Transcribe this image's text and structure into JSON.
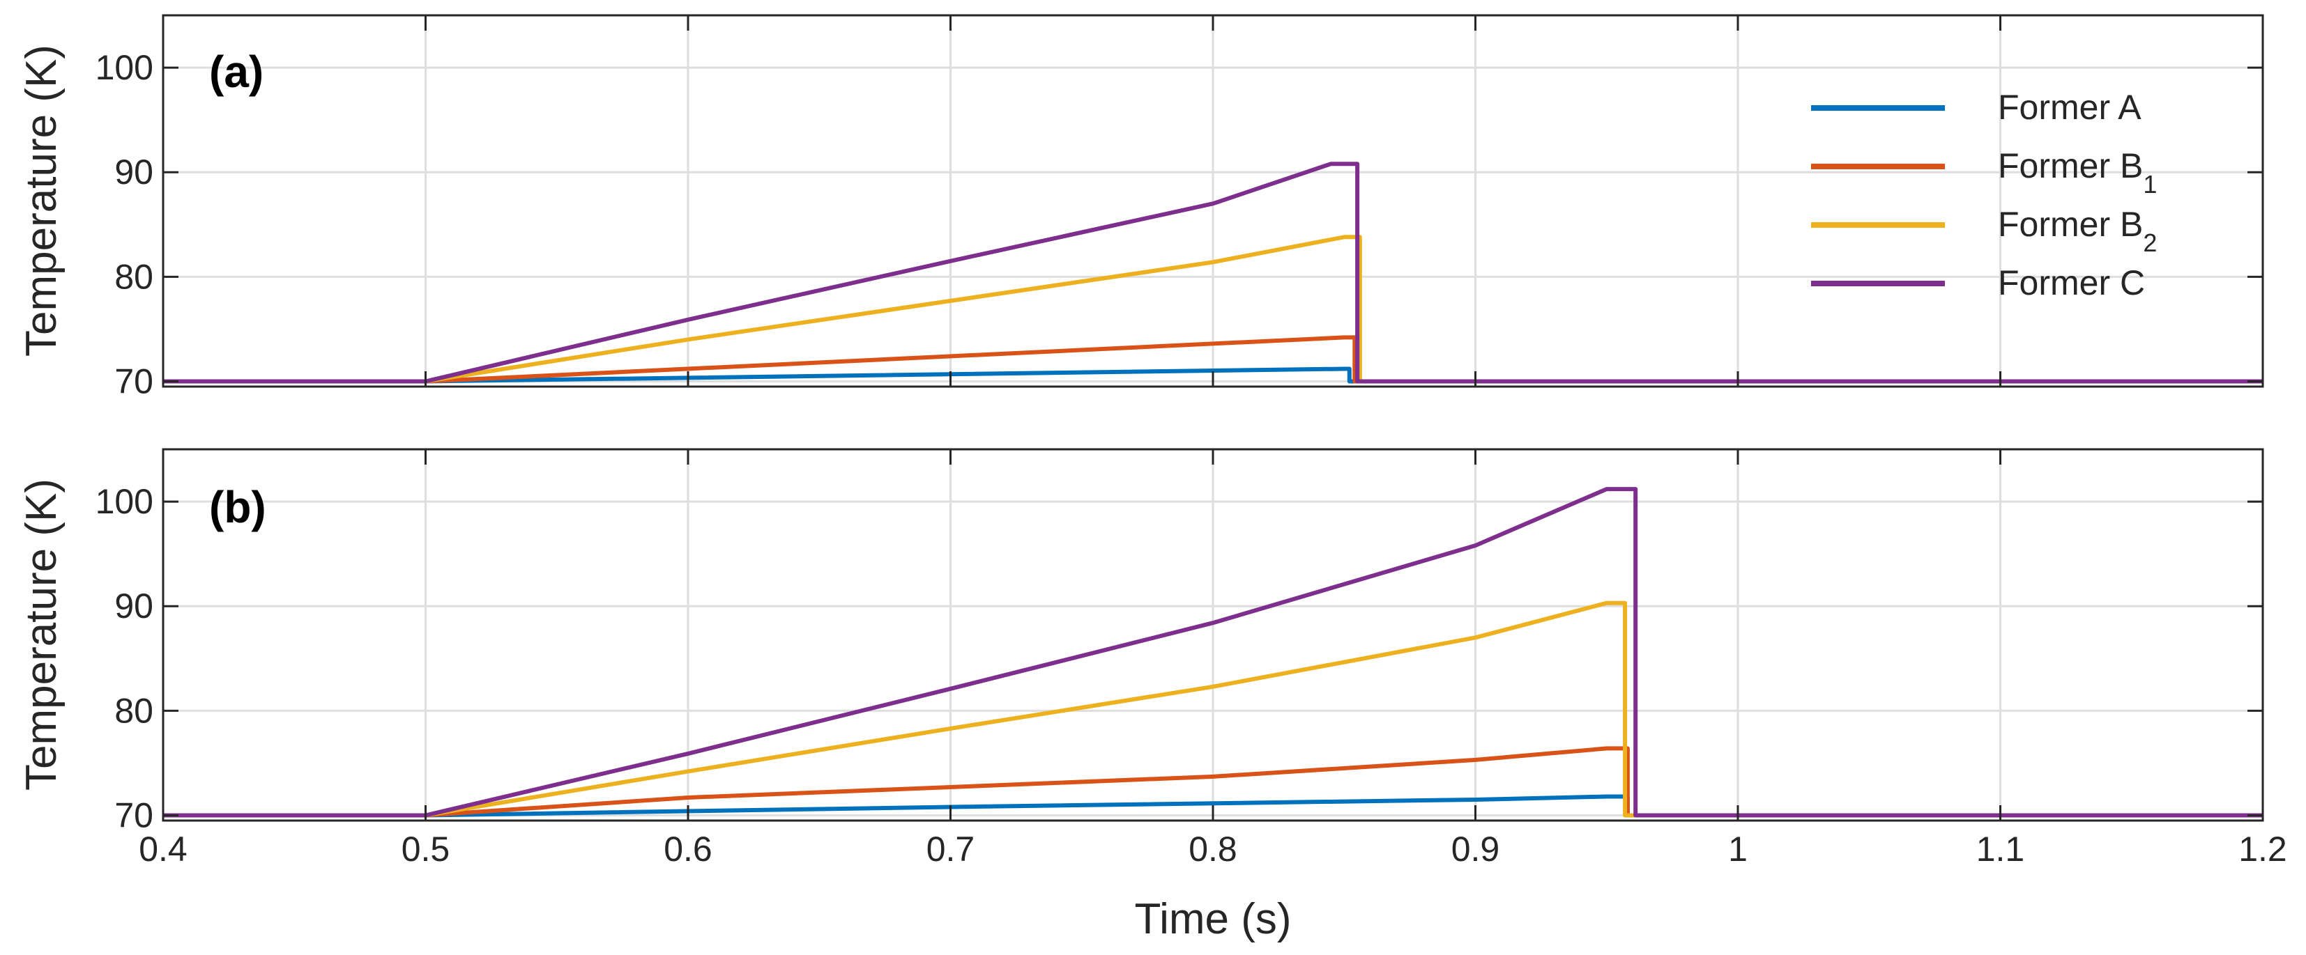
{
  "chart_data": [
    {
      "type": "line",
      "panel_label": "(a)",
      "xlabel": "",
      "ylabel": "Temperature (K)",
      "xlim": [
        0.4,
        1.2
      ],
      "ylim": [
        69.5,
        105
      ],
      "x_ticks": [
        0.4,
        0.5,
        0.6,
        0.7,
        0.8,
        0.9,
        1.0,
        1.1,
        1.2
      ],
      "x_tick_labels": [
        "",
        "",
        "",
        "",
        "",
        "",
        "",
        "",
        ""
      ],
      "y_ticks": [
        70,
        80,
        90,
        100
      ],
      "y_tick_labels": [
        "70",
        "80",
        "90",
        "100"
      ],
      "grid": true,
      "legend": {
        "position": "top-right",
        "entries": [
          {
            "text": "Former A",
            "sub": ""
          },
          {
            "text": "Former B",
            "sub": "1"
          },
          {
            "text": "Former B",
            "sub": "2"
          },
          {
            "text": "Former C",
            "sub": ""
          }
        ]
      },
      "series": [
        {
          "name": "Former A",
          "color": "#0072bd",
          "x": [
            0.4,
            0.5,
            0.85,
            0.85,
            0.852,
            0.852,
            1.2
          ],
          "y": [
            70,
            70,
            71.2,
            71.2,
            71.2,
            70,
            70
          ]
        },
        {
          "name": "Former B1",
          "color": "#d95319",
          "x": [
            0.4,
            0.5,
            0.85,
            0.854,
            0.854,
            1.2
          ],
          "y": [
            70,
            70,
            74.2,
            74.2,
            70,
            70
          ]
        },
        {
          "name": "Former B2",
          "color": "#edb120",
          "x": [
            0.4,
            0.5,
            0.6,
            0.7,
            0.8,
            0.85,
            0.856,
            0.856,
            1.2
          ],
          "y": [
            70,
            70,
            74.0,
            77.7,
            81.4,
            83.8,
            83.8,
            70,
            70
          ]
        },
        {
          "name": "Former C",
          "color": "#7e2f8e",
          "x": [
            0.4,
            0.5,
            0.6,
            0.7,
            0.8,
            0.845,
            0.855,
            0.855,
            1.2
          ],
          "y": [
            70,
            70,
            75.9,
            81.5,
            87.0,
            90.8,
            90.8,
            70,
            70
          ]
        }
      ]
    },
    {
      "type": "line",
      "panel_label": "(b)",
      "xlabel": "Time (s)",
      "ylabel": "Temperature (K)",
      "xlim": [
        0.4,
        1.2
      ],
      "ylim": [
        69.5,
        105
      ],
      "x_ticks": [
        0.4,
        0.5,
        0.6,
        0.7,
        0.8,
        0.9,
        1.0,
        1.1,
        1.2
      ],
      "x_tick_labels": [
        "0.4",
        "0.5",
        "0.6",
        "0.7",
        "0.8",
        "0.9",
        "1",
        "1.1",
        "1.2"
      ],
      "y_ticks": [
        70,
        80,
        90,
        100
      ],
      "y_tick_labels": [
        "70",
        "80",
        "90",
        "100"
      ],
      "grid": true,
      "series": [
        {
          "name": "Former A",
          "color": "#0072bd",
          "x": [
            0.4,
            0.5,
            0.7,
            0.9,
            0.95,
            0.958,
            0.958,
            1.2
          ],
          "y": [
            70,
            70,
            70.8,
            71.5,
            71.8,
            71.8,
            70,
            70
          ]
        },
        {
          "name": "Former B1",
          "color": "#d95319",
          "x": [
            0.4,
            0.5,
            0.6,
            0.7,
            0.8,
            0.9,
            0.95,
            0.958,
            0.958,
            1.2
          ],
          "y": [
            70,
            70,
            71.7,
            72.7,
            73.7,
            75.3,
            76.4,
            76.4,
            70,
            70
          ]
        },
        {
          "name": "Former B2",
          "color": "#edb120",
          "x": [
            0.4,
            0.5,
            0.6,
            0.7,
            0.8,
            0.9,
            0.95,
            0.957,
            0.957,
            1.2
          ],
          "y": [
            70,
            70,
            74.2,
            78.3,
            82.3,
            87.0,
            90.3,
            90.3,
            70,
            70
          ]
        },
        {
          "name": "Former C",
          "color": "#7e2f8e",
          "x": [
            0.4,
            0.5,
            0.6,
            0.7,
            0.8,
            0.9,
            0.95,
            0.961,
            0.961,
            1.2
          ],
          "y": [
            70,
            70,
            75.9,
            82.1,
            88.4,
            95.8,
            101.2,
            101.2,
            70,
            70
          ]
        }
      ]
    }
  ]
}
